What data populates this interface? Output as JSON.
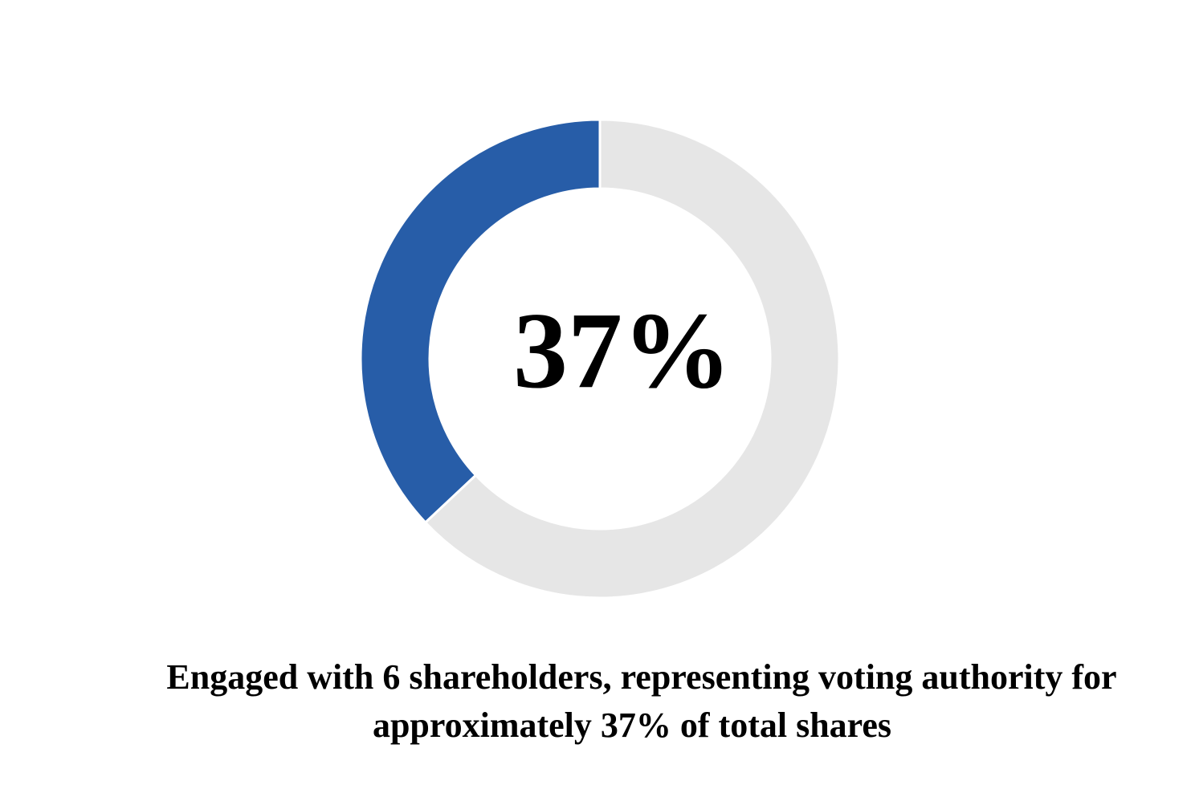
{
  "chart_data": {
    "type": "donut",
    "categories": [
      null,
      null
    ],
    "values": [
      37,
      63
    ],
    "value_labels": [
      "37%",
      null
    ],
    "colors": [
      "#275da8",
      "#e6e6e6"
    ],
    "caption": [
      "Engaged with 6 shareholders, representing voting authority for",
      "approximately 37% of total shares"
    ]
  }
}
